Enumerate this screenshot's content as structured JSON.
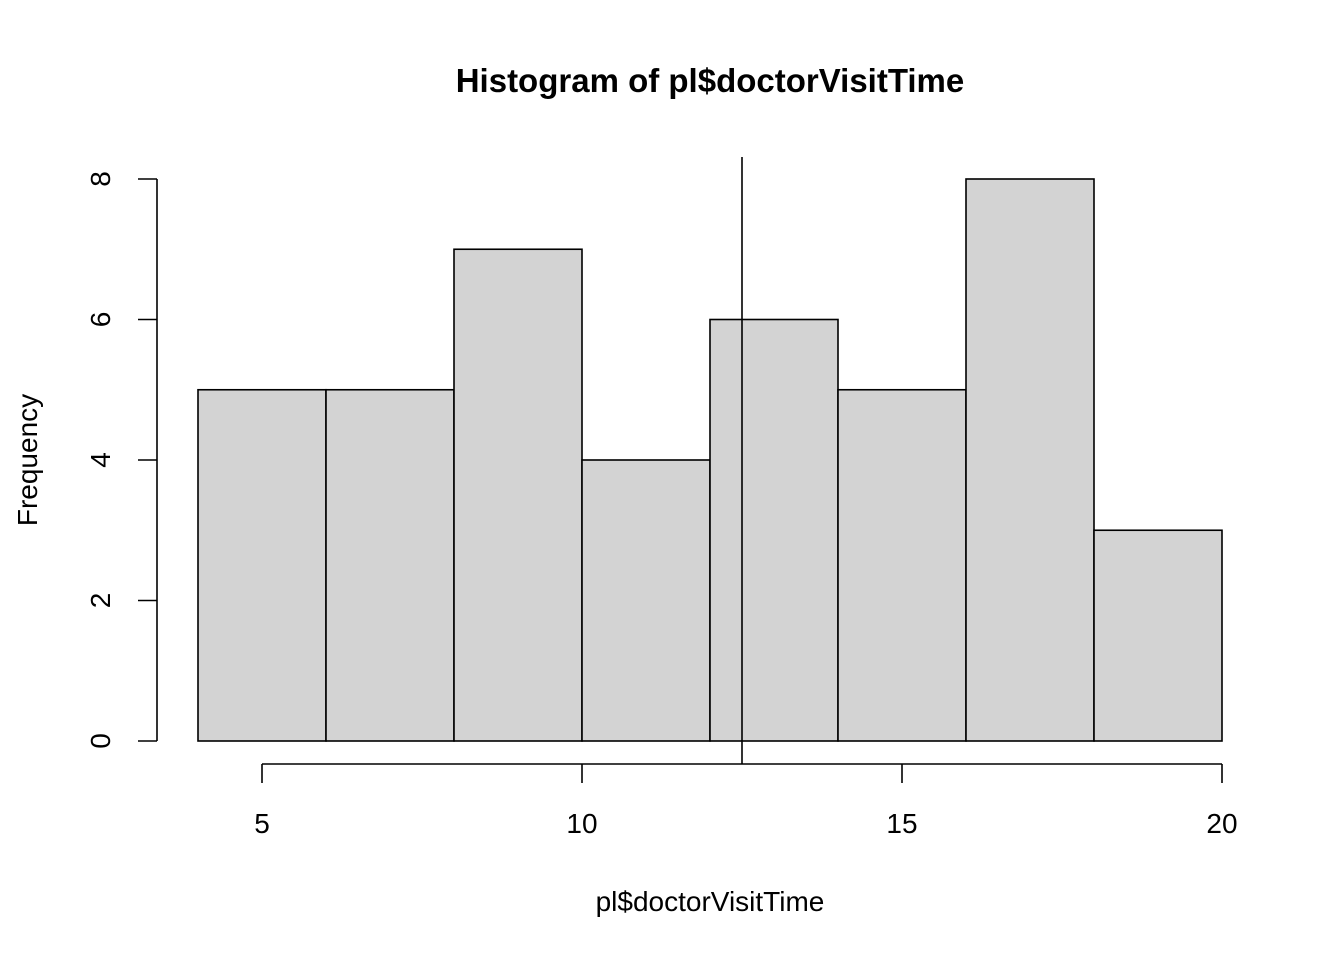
{
  "chart_data": {
    "type": "bar",
    "title": "Histogram of pl$doctorVisitTime",
    "xlabel": "pl$doctorVisitTime",
    "ylabel": "Frequency",
    "bins": [
      {
        "from": 4,
        "to": 6,
        "count": 5
      },
      {
        "from": 6,
        "to": 8,
        "count": 5
      },
      {
        "from": 8,
        "to": 10,
        "count": 7
      },
      {
        "from": 10,
        "to": 12,
        "count": 4
      },
      {
        "from": 12,
        "to": 14,
        "count": 6
      },
      {
        "from": 14,
        "to": 16,
        "count": 5
      },
      {
        "from": 16,
        "to": 18,
        "count": 8
      },
      {
        "from": 18,
        "to": 20,
        "count": 3
      }
    ],
    "xticks": [
      5,
      10,
      15,
      20
    ],
    "yticks": [
      0,
      2,
      4,
      6,
      8
    ],
    "xlim": [
      4,
      20
    ],
    "ylim": [
      0,
      8
    ],
    "vline_x": 12.5,
    "bar_color": "#d3d3d3",
    "grid": false
  }
}
